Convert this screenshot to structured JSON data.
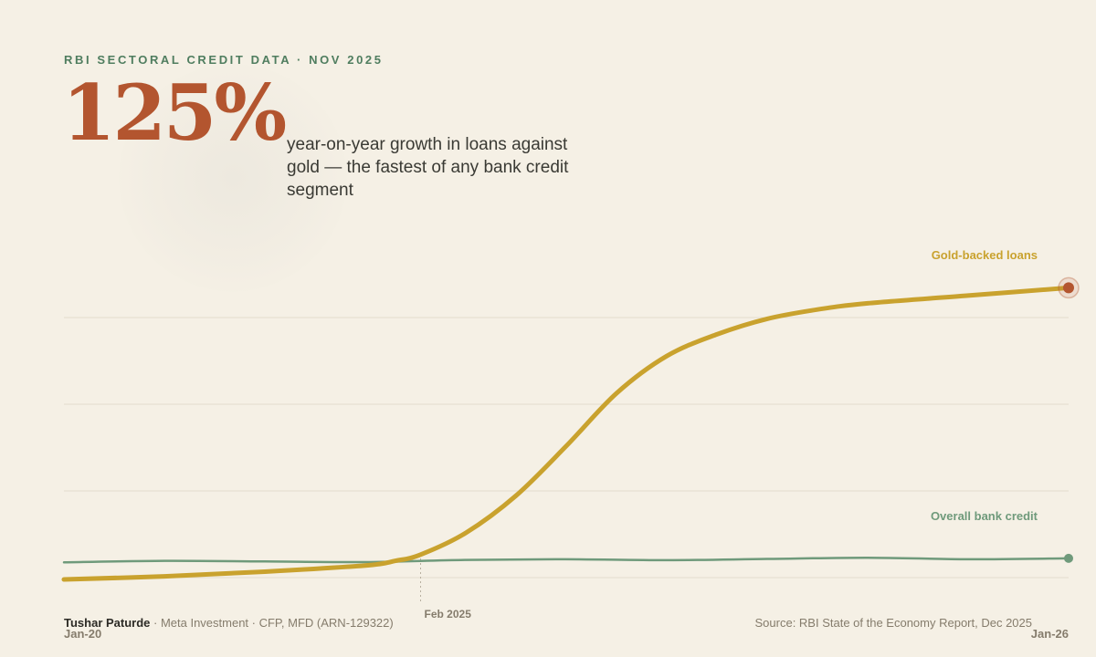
{
  "eyebrow": "RBI SECTORAL CREDIT DATA · NOV 2025",
  "headline_value": "125%",
  "subtitle": "year-on-year growth in loans against gold — the fastest of any bank credit segment",
  "footer": {
    "author": "Tushar Paturde",
    "credentials": " · Meta Investment · CFP, MFD (ARN-129322)",
    "source": "Source: RBI State of the Economy Report, Dec 2025"
  },
  "colors": {
    "gold": "#c9a22e",
    "green": "#6f9a7b",
    "accent": "#b3552f",
    "grid": "#e3dccd"
  },
  "chart_data": {
    "type": "line",
    "x_start_label": "Jan-20",
    "x_end_label": "Jan-26",
    "annotation": {
      "x": 0.355,
      "label": "Feb 2025"
    },
    "grid": true,
    "ylim": [
      0,
      1
    ],
    "series": [
      {
        "name": "Gold-backed loans",
        "color": "#c9a22e",
        "x": [
          0,
          0.1,
          0.2,
          0.3,
          0.33,
          0.355,
          0.4,
          0.45,
          0.5,
          0.55,
          0.6,
          0.65,
          0.7,
          0.75,
          0.8,
          0.9,
          1.0
        ],
        "values": [
          0.0,
          0.01,
          0.025,
          0.045,
          0.06,
          0.08,
          0.15,
          0.27,
          0.43,
          0.6,
          0.72,
          0.79,
          0.84,
          0.87,
          0.89,
          0.915,
          0.94
        ]
      },
      {
        "name": "Overall bank credit",
        "color": "#6f9a7b",
        "x": [
          0,
          0.1,
          0.2,
          0.3,
          0.4,
          0.5,
          0.6,
          0.7,
          0.8,
          0.9,
          1.0
        ],
        "values": [
          0.055,
          0.06,
          0.058,
          0.056,
          0.063,
          0.065,
          0.062,
          0.066,
          0.07,
          0.065,
          0.068
        ]
      }
    ]
  }
}
